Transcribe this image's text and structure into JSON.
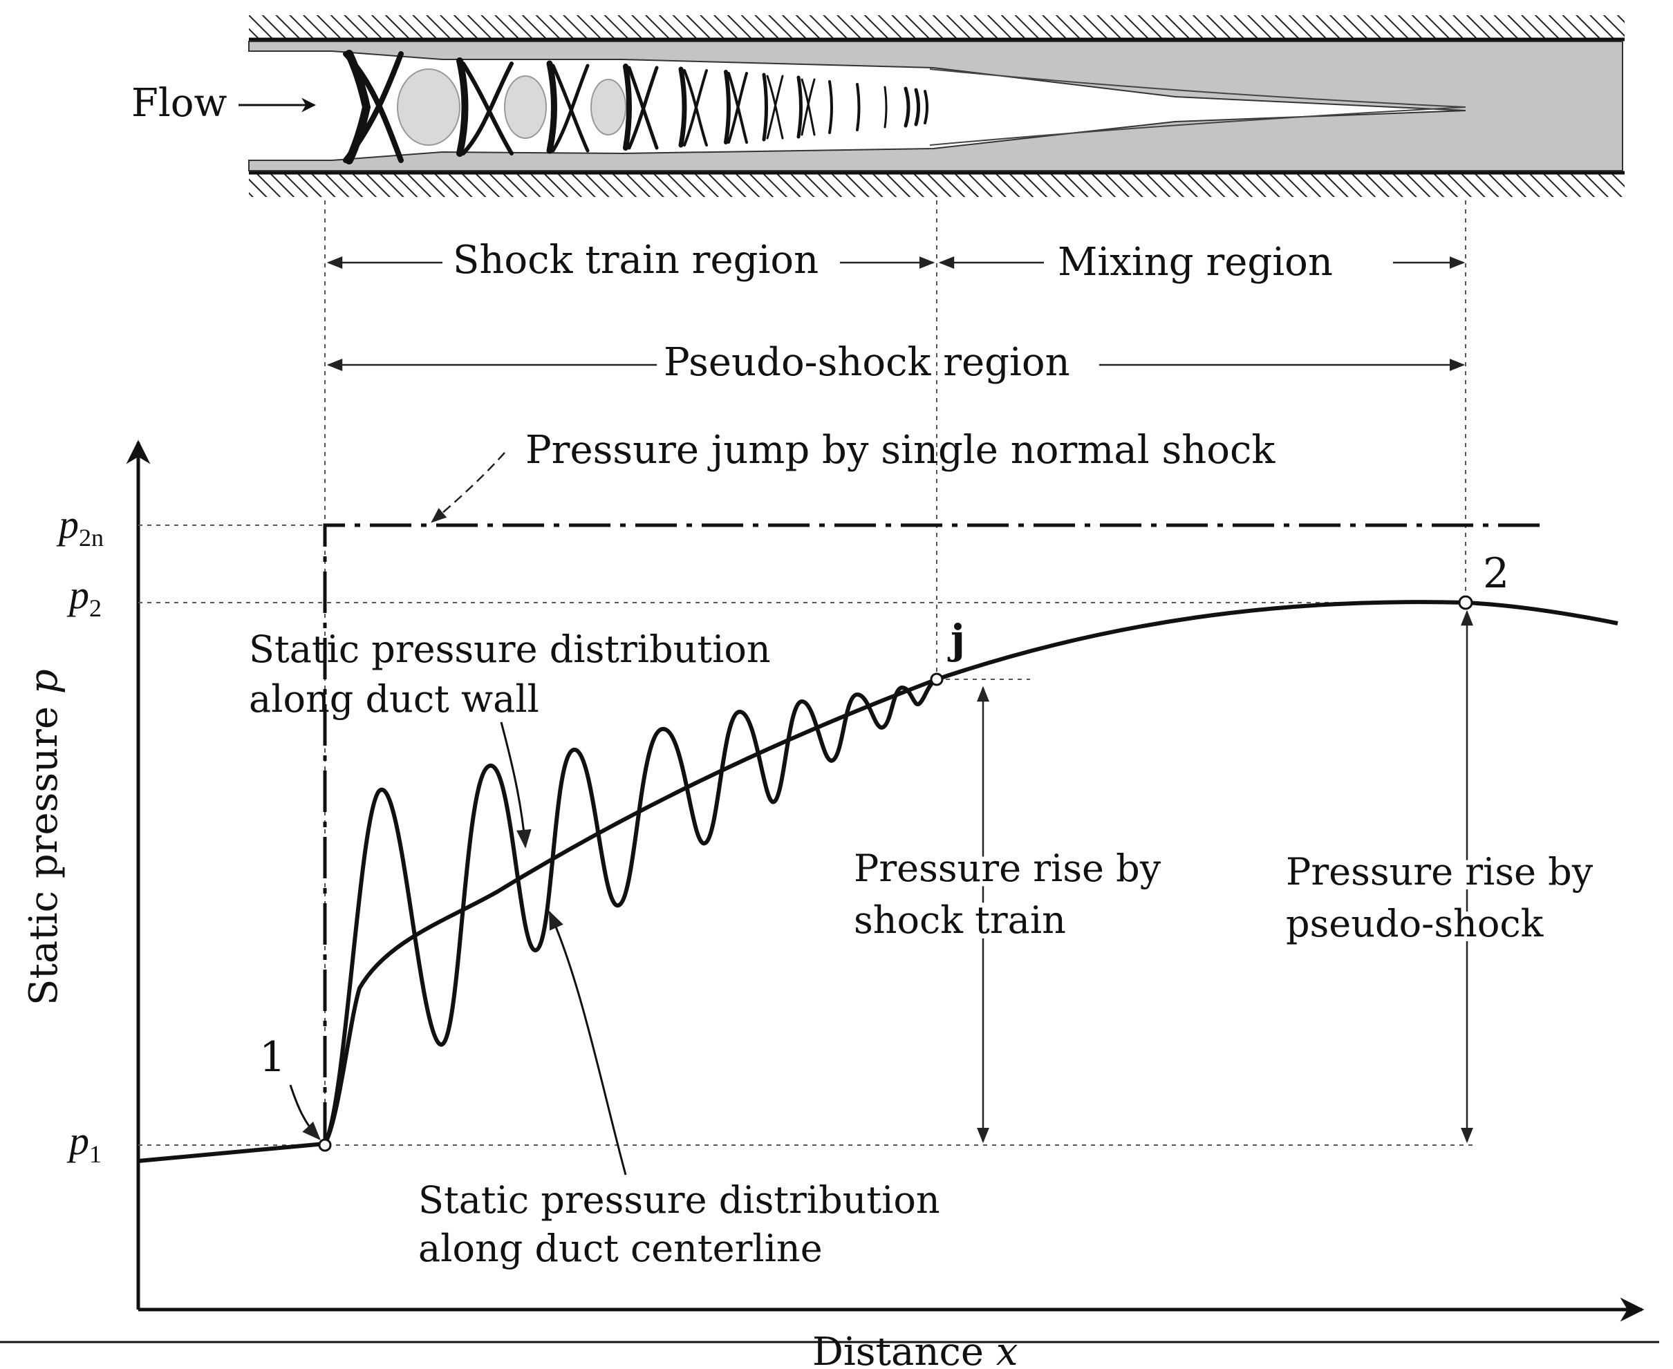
{
  "duct": {
    "flow_label": "Flow"
  },
  "regions": {
    "shock_train": "Shock train region",
    "mixing": "Mixing region",
    "pseudo_shock": "Pseudo-shock region"
  },
  "axes": {
    "y_label_text": "Static pressure ",
    "y_label_var": "p",
    "x_label_text": "Distance ",
    "x_label_var": "x"
  },
  "ticks": {
    "p2n_main": "p",
    "p2n_sub": "2n",
    "p2_main": "p",
    "p2_sub": "2",
    "p1_main": "p",
    "p1_sub": "1"
  },
  "points": {
    "point_1": "1",
    "point_j": "j",
    "point_2": "2"
  },
  "annotations": {
    "normal_shock": "Pressure jump by  single normal shock",
    "wall_line1": "Static pressure distribution",
    "wall_line2": "along duct wall",
    "center_line1": "Static pressure distribution",
    "center_line2": "along duct centerline",
    "rise_train_line1": "Pressure rise by",
    "rise_train_line2": "shock train",
    "rise_pseudo_line1": "Pressure rise by",
    "rise_pseudo_line2": "pseudo-shock"
  }
}
